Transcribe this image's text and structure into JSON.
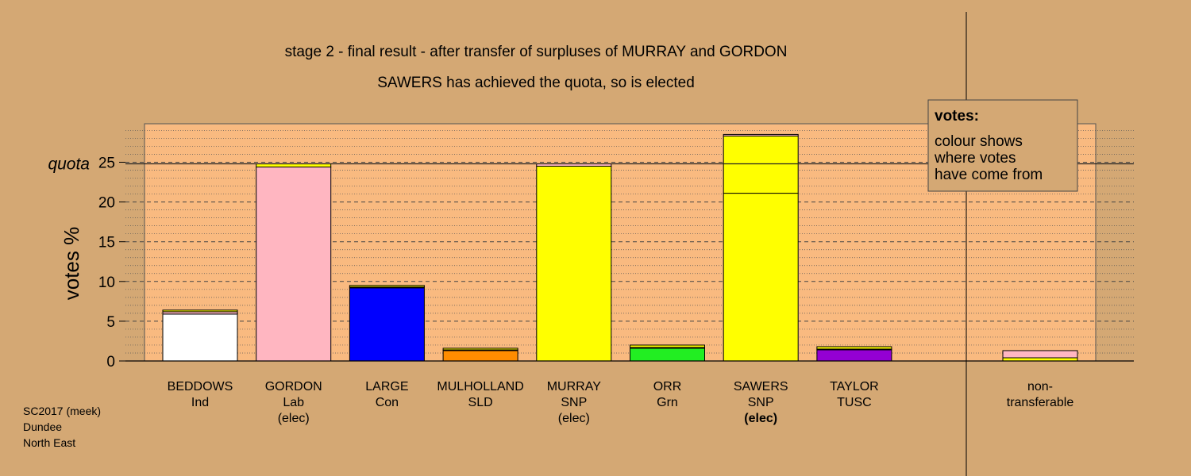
{
  "chart_data": {
    "type": "bar",
    "title": "stage 2 - final result - after transfer of surpluses of MURRAY and GORDON",
    "subtitle": "SAWERS has achieved the quota, so is elected",
    "ylabel": "votes %",
    "xlabel": "",
    "ylim": [
      0,
      30
    ],
    "yticks": [
      "0",
      "5",
      "10",
      "15",
      "20",
      "25"
    ],
    "quota": 24.8,
    "quota_label": "quota",
    "grid": "dashed horizontal",
    "legend": {
      "title": "votes:",
      "lines": [
        "colour shows",
        "where votes",
        "have come from"
      ],
      "position": "top-right"
    },
    "candidates": [
      {
        "label1": "BEDDOWS",
        "label2": "Ind",
        "label3": "",
        "elected_now": false,
        "segments": [
          {
            "value": 5.9,
            "color": "#ffffff"
          },
          {
            "value": 0.3,
            "color": "#ffb6c1"
          },
          {
            "value": 0.2,
            "color": "#ffff00"
          }
        ]
      },
      {
        "label1": "GORDON",
        "label2": "Lab",
        "label3": "(elec)",
        "elected_now": false,
        "segments": [
          {
            "value": 24.4,
            "color": "#ffb6c1"
          },
          {
            "value": 0.4,
            "color": "#ffff00"
          }
        ]
      },
      {
        "label1": "LARGE",
        "label2": "Con",
        "label3": "",
        "elected_now": false,
        "segments": [
          {
            "value": 9.2,
            "color": "#0000ff"
          },
          {
            "value": 0.1,
            "color": "#ffb6c1"
          },
          {
            "value": 0.2,
            "color": "#ffff00"
          }
        ]
      },
      {
        "label1": "MULHOLLAND",
        "label2": "SLD",
        "label3": "",
        "elected_now": false,
        "segments": [
          {
            "value": 1.3,
            "color": "#ff8c00"
          },
          {
            "value": 0.1,
            "color": "#ffb6c1"
          },
          {
            "value": 0.2,
            "color": "#ffff00"
          }
        ]
      },
      {
        "label1": "MURRAY",
        "label2": "SNP",
        "label3": "(elec)",
        "elected_now": false,
        "segments": [
          {
            "value": 24.5,
            "color": "#ffff00"
          },
          {
            "value": 0.3,
            "color": "#ffb6c1"
          }
        ]
      },
      {
        "label1": "ORR",
        "label2": "Grn",
        "label3": "",
        "elected_now": false,
        "segments": [
          {
            "value": 1.6,
            "color": "#22ee22"
          },
          {
            "value": 0.1,
            "color": "#ffb6c1"
          },
          {
            "value": 0.3,
            "color": "#ffff00"
          }
        ]
      },
      {
        "label1": "SAWERS",
        "label2": "SNP",
        "label3": "(elec)",
        "elected_now": true,
        "segments": [
          {
            "value": 21.1,
            "color": "#ffff00"
          },
          {
            "value": 7.2,
            "color": "#ffff00"
          },
          {
            "value": 0.2,
            "color": "#ffb6c1"
          }
        ]
      },
      {
        "label1": "TAYLOR",
        "label2": "TUSC",
        "label3": "",
        "elected_now": false,
        "segments": [
          {
            "value": 1.4,
            "color": "#9400d3"
          },
          {
            "value": 0.1,
            "color": "#ffb6c1"
          },
          {
            "value": 0.3,
            "color": "#ffff00"
          }
        ]
      }
    ],
    "nontransferable": {
      "label1": "non-",
      "label2": "transferable",
      "segments": [
        {
          "value": 0.4,
          "color": "#ffff00"
        },
        {
          "value": 0.9,
          "color": "#ffb6c1"
        }
      ]
    }
  },
  "footer": {
    "line1": "SC2017 (meek)",
    "line2": "Dundee",
    "line3": "North East"
  },
  "colors": {
    "background": "#d4a874",
    "panel": "#f9ba80",
    "legend_fill": "#d4a874"
  }
}
